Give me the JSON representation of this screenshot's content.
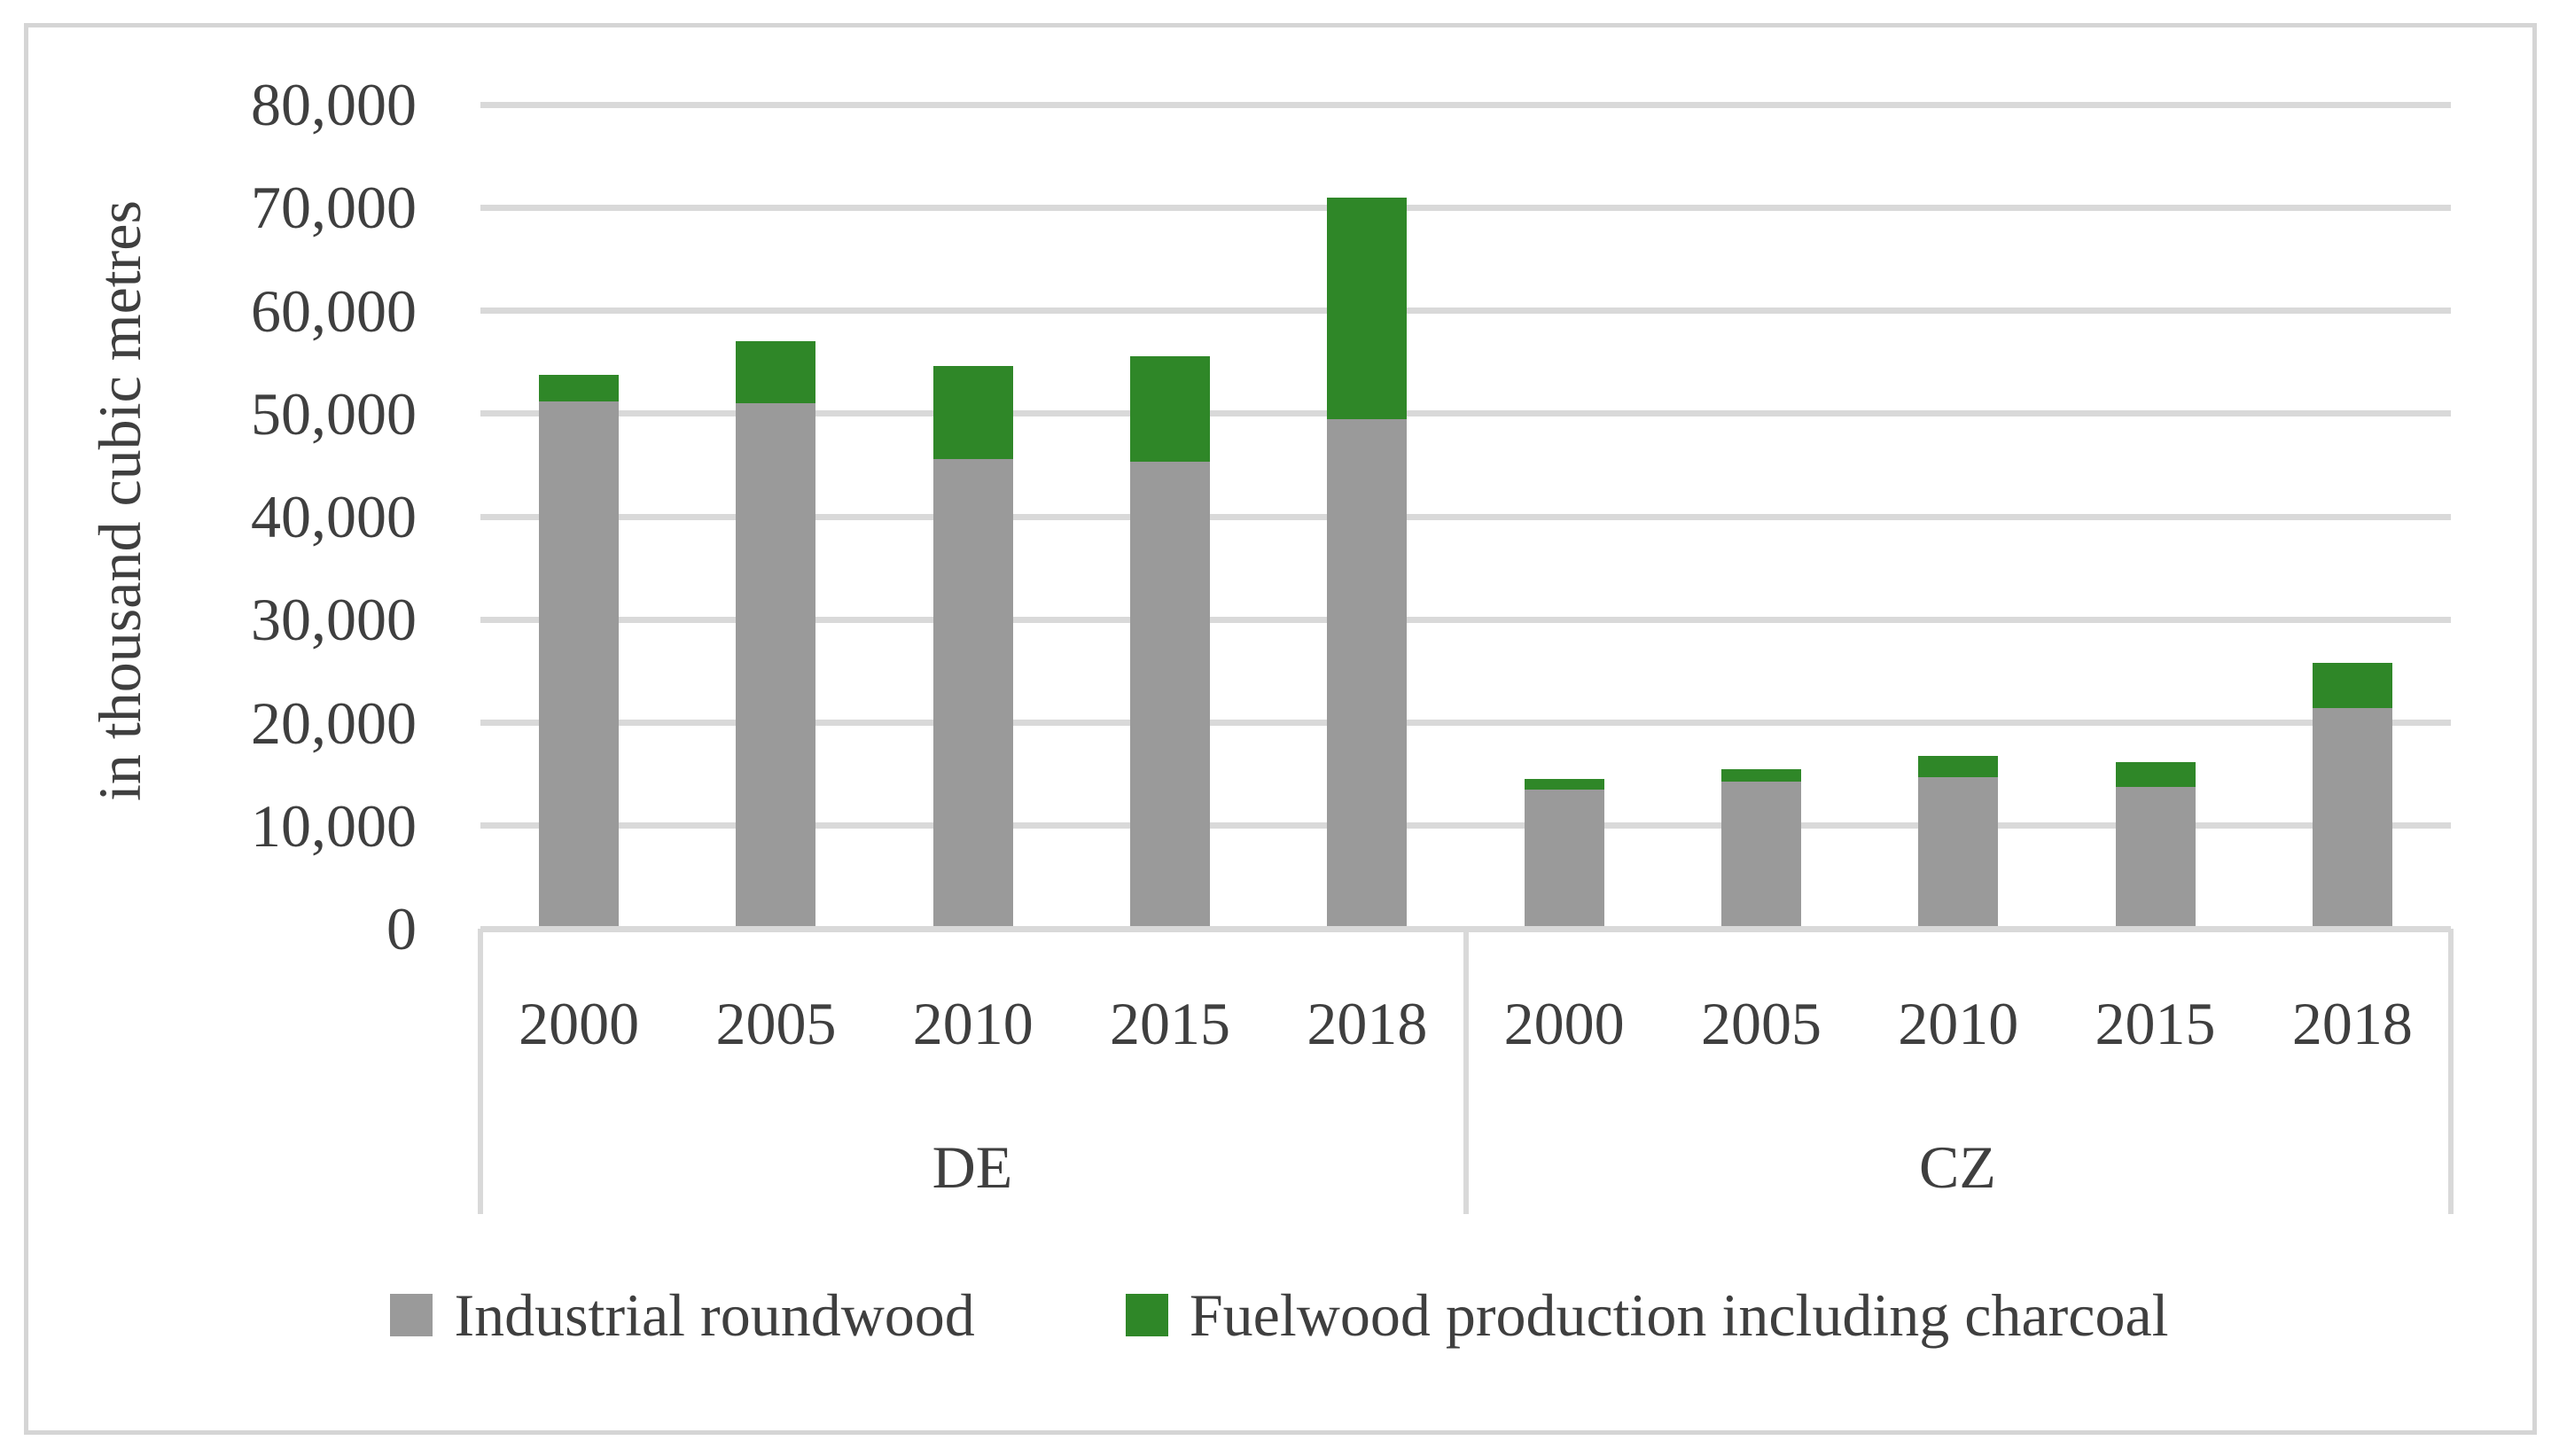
{
  "chart_data": {
    "type": "bar",
    "stacked": true,
    "orientation": "vertical",
    "title": "",
    "xlabel": "",
    "ylabel": "in thousand cubic metres",
    "units": "thousand cubic metres",
    "ylim": [
      0,
      80000
    ],
    "ytick_step": 10000,
    "ytick_labels": [
      "0",
      "10,000",
      "20,000",
      "30,000",
      "40,000",
      "50,000",
      "60,000",
      "70,000",
      "80,000"
    ],
    "grid": "horizontal",
    "legend_position": "bottom",
    "colors": {
      "industrial_roundwood": "#9a9a9a",
      "fuelwood": "#2f8728",
      "gridline": "#d9d9d9",
      "axis_text": "#3f3f3f",
      "frame_border": "#d5d5d5"
    },
    "groups": [
      {
        "label": "DE",
        "categories": [
          "2000",
          "2005",
          "2010",
          "2015",
          "2018"
        ],
        "series": [
          {
            "name": "Industrial roundwood",
            "values": [
              51200,
              51000,
              45600,
              45300,
              49500
            ]
          },
          {
            "name": "Fuelwood production including charcoal",
            "values": [
              2600,
              6000,
              9000,
              10300,
              21500
            ]
          }
        ]
      },
      {
        "label": "CZ",
        "categories": [
          "2000",
          "2005",
          "2010",
          "2015",
          "2018"
        ],
        "series": [
          {
            "name": "Industrial roundwood",
            "values": [
              13500,
              14300,
              14700,
              13800,
              21400
            ]
          },
          {
            "name": "Fuelwood production including charcoal",
            "values": [
              1000,
              1200,
              2100,
              2400,
              4400
            ]
          }
        ]
      }
    ],
    "legend": [
      {
        "label": "Industrial roundwood",
        "color": "#9a9a9a"
      },
      {
        "label": "Fuelwood production including charcoal",
        "color": "#2f8728"
      }
    ]
  }
}
